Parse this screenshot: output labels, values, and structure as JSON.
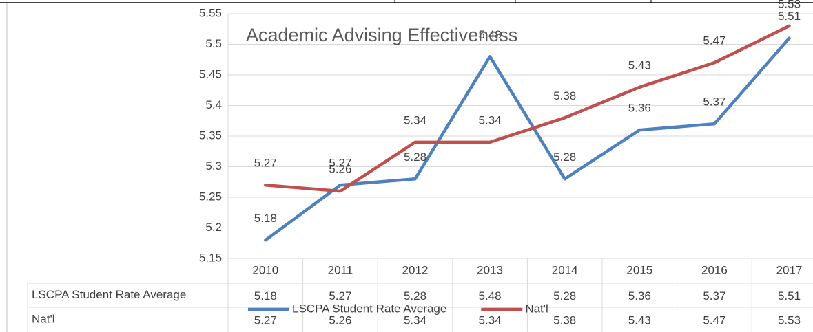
{
  "chart_data": {
    "type": "line",
    "title": "Academic Advising Effectiveness",
    "categories": [
      "2010",
      "2011",
      "2012",
      "2013",
      "2014",
      "2015",
      "2016",
      "2017"
    ],
    "series": [
      {
        "name": "LSCPA Student Rate Average",
        "color": "#4f81bd",
        "values": [
          5.18,
          5.27,
          5.28,
          5.48,
          5.28,
          5.36,
          5.37,
          5.51
        ]
      },
      {
        "name": "Nat'l",
        "color": "#c0504d",
        "values": [
          5.27,
          5.26,
          5.34,
          5.34,
          5.38,
          5.43,
          5.47,
          5.53
        ]
      }
    ],
    "ylim": [
      5.15,
      5.55
    ],
    "yticks": [
      5.15,
      5.2,
      5.25,
      5.3,
      5.35,
      5.4,
      5.45,
      5.5,
      5.55
    ],
    "grid": true,
    "legend": "bottom"
  }
}
